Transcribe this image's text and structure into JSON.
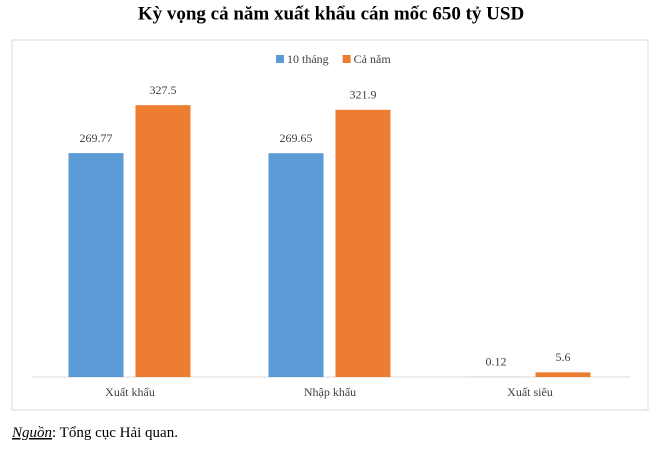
{
  "chart_data": {
    "type": "bar",
    "title": "Kỳ vọng cả năm xuất khẩu cán mốc 650 tỷ USD",
    "categories": [
      "Xuất khẩu",
      "Nhập khẩu",
      "Xuất siêu"
    ],
    "series": [
      {
        "name": "10 tháng",
        "color": "#5b9bd5",
        "values": [
          269.77,
          269.65,
          0.12
        ]
      },
      {
        "name": "Cả năm",
        "color": "#ed7d31",
        "values": [
          327.5,
          321.9,
          5.6
        ]
      }
    ],
    "legend": "top"
  },
  "source": {
    "label": "Nguồn",
    "text": ": Tổng cục Hải quan."
  }
}
